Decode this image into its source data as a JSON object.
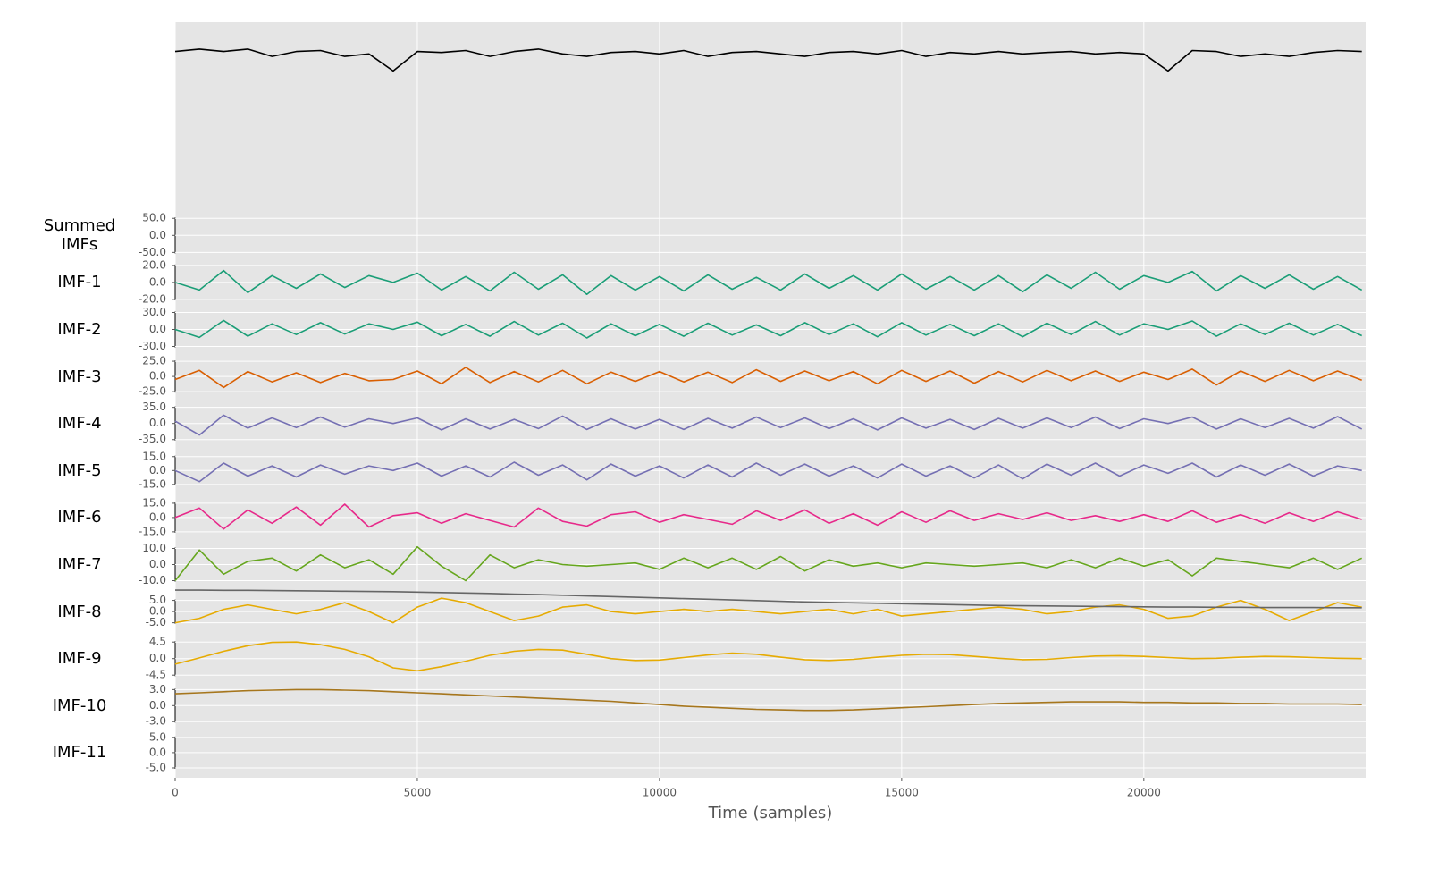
{
  "chart_data": {
    "type": "line",
    "xlabel": "Time (samples)",
    "xlim": [
      0,
      24580
    ],
    "xticks": [
      0,
      5000,
      10000,
      15000,
      20000
    ],
    "grid": true,
    "x": [
      0,
      500,
      1000,
      1500,
      2000,
      2500,
      3000,
      3500,
      4000,
      4500,
      5000,
      5500,
      6000,
      6500,
      7000,
      7500,
      8000,
      8500,
      9000,
      9500,
      10000,
      10500,
      11000,
      11500,
      12000,
      12500,
      13000,
      13500,
      14000,
      14500,
      15000,
      15500,
      16000,
      16500,
      17000,
      17500,
      18000,
      18500,
      19000,
      19500,
      20000,
      20500,
      21000,
      21500,
      22000,
      22500,
      23000,
      23500,
      24000,
      24500
    ],
    "panels": [
      {
        "ylim": [
          -2.9,
          1.0
        ],
        "series": [
          {
            "color": "#000000",
            "values": [
              0.4,
              0.45,
              0.4,
              0.45,
              0.3,
              0.4,
              0.42,
              0.3,
              0.35,
              0,
              0.4,
              0.38,
              0.42,
              0.3,
              0.4,
              0.45,
              0.35,
              0.3,
              0.38,
              0.4,
              0.35,
              0.42,
              0.3,
              0.38,
              0.4,
              0.35,
              0.3,
              0.38,
              0.4,
              0.35,
              0.42,
              0.3,
              0.38,
              0.35,
              0.4,
              0.35,
              0.38,
              0.4,
              0.35,
              0.38,
              0.35,
              0,
              0.42,
              0.4,
              0.3,
              0.35,
              0.3,
              0.38,
              0.42,
              0.4
            ]
          }
        ]
      },
      {
        "label": "Summed IMFs",
        "ylim": [
          -69,
          69
        ],
        "yticks": [
          {
            "value": 50,
            "label": "50.0"
          },
          {
            "value": 0,
            "label": "0.0"
          },
          {
            "value": -50,
            "label": "-50.0"
          }
        ],
        "series": []
      },
      {
        "label": "IMF-1",
        "ylim": [
          -27.7,
          27.7
        ],
        "yticks": [
          {
            "value": 20,
            "label": "20.0"
          },
          {
            "value": 0,
            "label": "0.0"
          },
          {
            "value": -20,
            "label": "-20.0"
          }
        ],
        "series": [
          {
            "color": "#1b9e77",
            "values": [
              0,
              -9,
              14,
              -12,
              8,
              -7,
              10,
              -6,
              8,
              0,
              11,
              -9,
              7,
              -10,
              12,
              -8,
              9,
              -14,
              8,
              -9,
              7,
              -10,
              9,
              -8,
              6,
              -9,
              10,
              -7,
              8,
              -9,
              10,
              -8,
              7,
              -9,
              8,
              -11,
              9,
              -7,
              12,
              -8,
              8,
              0,
              13,
              -10,
              8,
              -7,
              9,
              -8,
              7,
              -9
            ]
          }
        ]
      },
      {
        "label": "IMF-2",
        "ylim": [
          -41.5,
          41.5
        ],
        "yticks": [
          {
            "value": 30,
            "label": "30.0"
          },
          {
            "value": 0,
            "label": "0.0"
          },
          {
            "value": -30,
            "label": "-30.0"
          }
        ],
        "series": [
          {
            "color": "#1b9e77",
            "values": [
              0,
              -14,
              16,
              -12,
              10,
              -9,
              12,
              -8,
              10,
              0,
              13,
              -11,
              9,
              -12,
              14,
              -10,
              11,
              -15,
              10,
              -11,
              9,
              -12,
              11,
              -10,
              8,
              -11,
              12,
              -9,
              10,
              -13,
              12,
              -10,
              9,
              -11,
              10,
              -13,
              11,
              -9,
              14,
              -10,
              10,
              0,
              15,
              -12,
              10,
              -9,
              11,
              -10,
              9,
              -11
            ]
          }
        ]
      },
      {
        "label": "IMF-3",
        "ylim": [
          -38.6,
          38.6
        ],
        "yticks": [
          {
            "value": 25,
            "label": "25.0"
          },
          {
            "value": 0,
            "label": "0.0"
          },
          {
            "value": -25,
            "label": "-25.0"
          }
        ],
        "series": [
          {
            "color": "#d95f02",
            "values": [
              -5,
              10,
              -18,
              8,
              -9,
              6,
              -10,
              5,
              -7,
              -5,
              9,
              -12,
              15,
              -10,
              8,
              -9,
              10,
              -12,
              7,
              -8,
              8,
              -9,
              7,
              -10,
              11,
              -8,
              9,
              -7,
              8,
              -12,
              10,
              -8,
              9,
              -11,
              8,
              -9,
              10,
              -7,
              9,
              -8,
              7,
              -5,
              12,
              -14,
              9,
              -8,
              10,
              -7,
              9,
              -6
            ]
          }
        ]
      },
      {
        "label": "IMF-4",
        "ylim": [
          -51,
          51
        ],
        "yticks": [
          {
            "value": 35,
            "label": "35.0"
          },
          {
            "value": 0,
            "label": "0.0"
          },
          {
            "value": -35,
            "label": "-35.0"
          }
        ],
        "series": [
          {
            "color": "#7570b3",
            "values": [
              5,
              -25,
              18,
              -10,
              12,
              -9,
              14,
              -8,
              10,
              0,
              12,
              -14,
              10,
              -12,
              9,
              -11,
              16,
              -13,
              10,
              -12,
              9,
              -13,
              11,
              -10,
              14,
              -9,
              12,
              -11,
              10,
              -14,
              12,
              -10,
              9,
              -13,
              11,
              -10,
              12,
              -9,
              14,
              -11,
              10,
              0,
              14,
              -12,
              10,
              -9,
              11,
              -10,
              15,
              -12
            ]
          }
        ]
      },
      {
        "label": "IMF-5",
        "ylim": [
          -25.4,
          25.4
        ],
        "yticks": [
          {
            "value": 15,
            "label": "15.0"
          },
          {
            "value": 0,
            "label": "0.0"
          },
          {
            "value": -15,
            "label": "-15.0"
          }
        ],
        "series": [
          {
            "color": "#7570b3",
            "values": [
              0,
              -12,
              8,
              -6,
              5,
              -7,
              6,
              -4,
              5,
              0,
              8,
              -6,
              5,
              -7,
              9,
              -5,
              6,
              -10,
              7,
              -6,
              5,
              -8,
              6,
              -7,
              8,
              -5,
              7,
              -6,
              5,
              -8,
              7,
              -6,
              5,
              -8,
              6,
              -9,
              7,
              -5,
              8,
              -6,
              6,
              -3,
              8,
              -7,
              6,
              -5,
              7,
              -6,
              5,
              0
            ]
          }
        ]
      },
      {
        "label": "IMF-6",
        "ylim": [
          -24.7,
          24.7
        ],
        "yticks": [
          {
            "value": 15,
            "label": "15.0"
          },
          {
            "value": 0,
            "label": "0.0"
          },
          {
            "value": -15,
            "label": "-15.0"
          }
        ],
        "series": [
          {
            "color": "#e7298a",
            "values": [
              0,
              10,
              -12,
              8,
              -6,
              11,
              -8,
              14,
              -10,
              2,
              5,
              -6,
              4,
              -3,
              -10,
              10,
              -4,
              -9,
              3,
              6,
              -5,
              3,
              -2,
              -7,
              7,
              -3,
              8,
              -6,
              4,
              -8,
              6,
              -5,
              7,
              -3,
              4,
              -2,
              5,
              -3,
              2,
              -4,
              3,
              -4,
              7,
              -5,
              3,
              -6,
              5,
              -4,
              6,
              -2
            ]
          }
        ]
      },
      {
        "label": "IMF-7",
        "ylim": [
          -14.6,
          14.6
        ],
        "yticks": [
          {
            "value": 10,
            "label": "10.0"
          },
          {
            "value": 0,
            "label": "0.0"
          },
          {
            "value": -10,
            "label": "-10.0"
          }
        ],
        "series": [
          {
            "color": "#66a61e",
            "values": [
              -10,
              9,
              -6,
              2,
              4,
              -4,
              6,
              -2,
              3,
              -6,
              11,
              -1,
              -10,
              6,
              -2,
              3,
              0,
              -1,
              0,
              1,
              -3,
              4,
              -2,
              4,
              -3,
              5,
              -4,
              3,
              -1,
              1,
              -2,
              1,
              0,
              -1,
              0,
              1,
              -2,
              3,
              -2,
              4,
              -1,
              3,
              -7,
              4,
              2,
              0,
              -2,
              4,
              -3,
              4
            ]
          }
        ]
      },
      {
        "label": "IMF-8",
        "ylim": [
          -10.5,
          10.5
        ],
        "yticks": [
          {
            "value": 5,
            "label": "5.0"
          },
          {
            "value": 0,
            "label": "0.0"
          },
          {
            "value": -5,
            "label": "-5.0"
          }
        ],
        "series": [
          {
            "color": "#e6ab02",
            "values": [
              -5,
              -3,
              1,
              3,
              1,
              -1,
              1,
              4,
              0,
              -5,
              2,
              6,
              4,
              0,
              -4,
              -2,
              2,
              3,
              0,
              -1,
              0,
              1,
              0,
              1,
              0,
              -1,
              0,
              1,
              -1,
              1,
              -2,
              -1,
              0,
              1,
              2,
              1,
              -1,
              0,
              2,
              3,
              1,
              -3,
              -2,
              2,
              5,
              1,
              -4,
              0,
              4,
              2
            ]
          },
          {
            "color": "#666666",
            "values": [
              9.6,
              9.6,
              9.5,
              9.5,
              9.4,
              9.3,
              9.2,
              9.1,
              9.0,
              8.9,
              8.7,
              8.5,
              8.3,
              8.1,
              7.8,
              7.6,
              7.3,
              7.0,
              6.7,
              6.4,
              6.1,
              5.8,
              5.5,
              5.2,
              4.9,
              4.6,
              4.3,
              4.1,
              3.9,
              3.7,
              3.5,
              3.3,
              3.1,
              2.9,
              2.7,
              2.6,
              2.5,
              2.4,
              2.3,
              2.2,
              2.1,
              2.0,
              2.0,
              1.9,
              1.9,
              1.8,
              1.8,
              1.8,
              1.7,
              1.7
            ]
          }
        ]
      },
      {
        "label": "IMF-9",
        "ylim": [
          -6.4,
          6.4
        ],
        "yticks": [
          {
            "value": 4.5,
            "label": "4.5"
          },
          {
            "value": 0,
            "label": "0.0"
          },
          {
            "value": -4.5,
            "label": "-4.5"
          }
        ],
        "series": [
          {
            "color": "#e6ab02",
            "values": [
              -1.5,
              0.2,
              2,
              3.5,
              4.4,
              4.5,
              3.8,
              2.5,
              0.5,
              -2.5,
              -3.3,
              -2.2,
              -0.7,
              0.9,
              2,
              2.5,
              2.3,
              1.2,
              0,
              -0.5,
              -0.4,
              0.3,
              1,
              1.5,
              1.2,
              0.4,
              -0.3,
              -0.5,
              -0.2,
              0.4,
              0.9,
              1.2,
              1.1,
              0.6,
              0.1,
              -0.3,
              -0.2,
              0.3,
              0.7,
              0.8,
              0.6,
              0.3,
              0,
              0.1,
              0.4,
              0.6,
              0.5,
              0.3,
              0.1,
              0
            ]
          }
        ]
      },
      {
        "label": "IMF-10",
        "ylim": [
          -4.4,
          4.4
        ],
        "yticks": [
          {
            "value": 3,
            "label": "3.0"
          },
          {
            "value": 0,
            "label": "0.0"
          },
          {
            "value": -3,
            "label": "-3.0"
          }
        ],
        "series": [
          {
            "color": "#a6761d",
            "values": [
              2.2,
              2.4,
              2.6,
              2.8,
              2.9,
              3,
              3,
              2.9,
              2.8,
              2.6,
              2.4,
              2.2,
              2,
              1.8,
              1.6,
              1.4,
              1.2,
              1,
              0.8,
              0.5,
              0.2,
              -0.1,
              -0.3,
              -0.5,
              -0.7,
              -0.8,
              -0.9,
              -0.9,
              -0.8,
              -0.6,
              -0.4,
              -0.2,
              0,
              0.2,
              0.4,
              0.5,
              0.6,
              0.7,
              0.7,
              0.7,
              0.6,
              0.6,
              0.5,
              0.5,
              0.4,
              0.4,
              0.3,
              0.3,
              0.3,
              0.2
            ]
          }
        ]
      },
      {
        "label": "IMF-11",
        "ylim": [
          -7.7,
          7.7
        ],
        "yticks": [
          {
            "value": 5,
            "label": "5.0"
          },
          {
            "value": 0,
            "label": "0.0"
          },
          {
            "value": -5,
            "label": "-5.0"
          }
        ],
        "series": []
      }
    ]
  }
}
